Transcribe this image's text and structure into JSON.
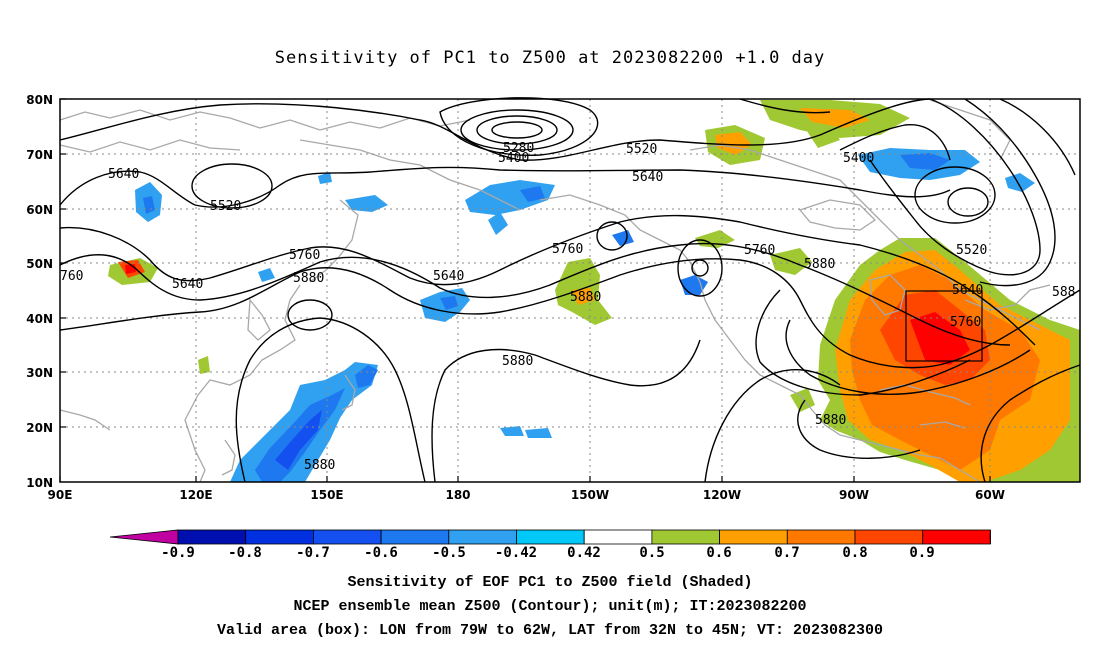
{
  "title": "Sensitivity of PC1 to Z500 at 2023082200 +1.0 day",
  "lat_labels": [
    "80N",
    "70N",
    "60N",
    "50N",
    "40N",
    "30N",
    "20N",
    "10N"
  ],
  "lon_labels": [
    "90E",
    "120E",
    "150E",
    "180",
    "150W",
    "120W",
    "90W",
    "60W"
  ],
  "contour_labels": {
    "c5280": "5280",
    "c5400a": "5400",
    "c5520a": "5520",
    "c5400b": "5400",
    "c5640a": "5640",
    "c5640b": "5640",
    "c5520b": "5520",
    "c5640c": "5640",
    "c760": "760",
    "c5760a": "5760",
    "c5880a": "5880",
    "c5640d": "5640",
    "c5760b": "5760",
    "c5880b": "5880",
    "c5880c": "5880",
    "c5760c": "5760",
    "c5880d": "5880",
    "c5520c": "5520",
    "c5640e": "5640",
    "c588": "588",
    "c5760d": "5760",
    "c5880e": "5880",
    "c5880f": "5880"
  },
  "colorbar": {
    "labels": [
      "-0.9",
      "-0.8",
      "-0.7",
      "-0.6",
      "-0.5",
      "-0.42",
      "0.42",
      "0.5",
      "0.6",
      "0.7",
      "0.8",
      "0.9"
    ],
    "colors": [
      "#c000a0",
      "#0010b0",
      "#0030e0",
      "#1450f0",
      "#1e78f0",
      "#30a0f0",
      "#00c8f8",
      "#ffffff",
      "#a0c832",
      "#ffa000",
      "#ff7800",
      "#ff4600",
      "#ff0000",
      "#ff96c8"
    ]
  },
  "caption": {
    "line1": "Sensitivity of EOF PC1 to Z500 field (Shaded)",
    "line2": "NCEP ensemble mean Z500 (Contour); unit(m); IT:2023082200",
    "line3": "Valid area (box): LON from 79W to 62W, LAT from 32N to 45N; VT: 2023082300"
  }
}
